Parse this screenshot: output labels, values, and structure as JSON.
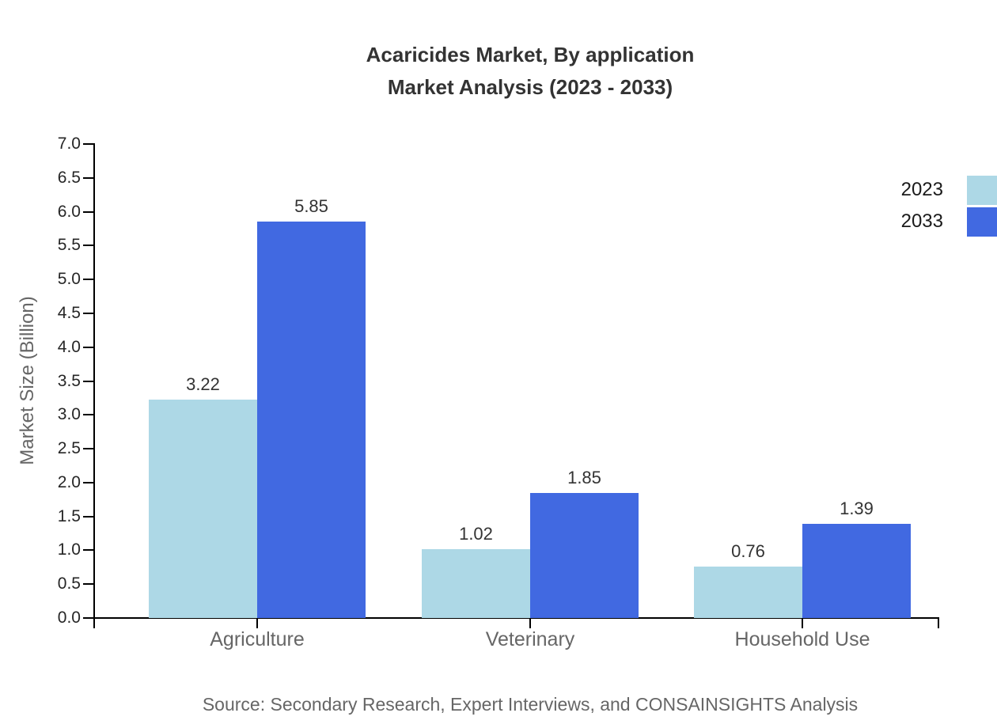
{
  "title": {
    "line1": "Acaricides Market, By application",
    "line2": "Market Analysis (2023 - 2033)"
  },
  "source": "Source: Secondary Research, Expert Interviews, and CONSAINSIGHTS Analysis",
  "legend": [
    {
      "label": "2023",
      "color": "#ADD8E6"
    },
    {
      "label": "2033",
      "color": "#4169E1"
    }
  ],
  "chart_data": {
    "type": "bar",
    "title": "Acaricides Market, By application Market Analysis (2023 - 2033)",
    "categories": [
      "Agriculture",
      "Veterinary",
      "Household Use"
    ],
    "series": [
      {
        "name": "2023",
        "color": "#ADD8E6",
        "values": [
          3.22,
          1.02,
          0.76
        ]
      },
      {
        "name": "2033",
        "color": "#4169E1",
        "values": [
          5.85,
          1.85,
          1.39
        ]
      }
    ],
    "xlabel": "",
    "ylabel": "Market Size (Billion)",
    "ylim": [
      0,
      7
    ],
    "ytick_step": 0.5,
    "ytick_decimals": 1,
    "value_label_decimals": 2,
    "grid": false,
    "legend_position": "outside-right-top",
    "bar_colors_note": "2023 lightblue, 2033 royalblue"
  }
}
